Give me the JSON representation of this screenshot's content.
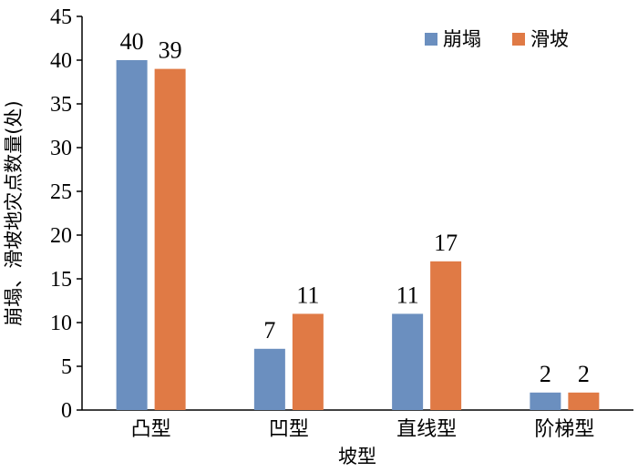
{
  "chart_data": {
    "type": "bar",
    "categories": [
      "凸型",
      "凹型",
      "直线型",
      "阶梯型"
    ],
    "series": [
      {
        "name": "崩塌",
        "values": [
          40,
          7,
          11,
          2
        ],
        "color": "#6b8fbf"
      },
      {
        "name": "滑坡",
        "values": [
          39,
          11,
          17,
          2
        ],
        "color": "#e07a45"
      }
    ],
    "xlabel": "坡型",
    "ylabel": "崩塌、滑坡地灾点数量(处)",
    "ylim": [
      0,
      45
    ],
    "yticks": [
      0,
      5,
      10,
      15,
      20,
      25,
      30,
      35,
      40,
      45
    ],
    "value_labels": [
      [
        "40",
        "7",
        "11",
        "2"
      ],
      [
        "39",
        "11",
        "17",
        "2"
      ]
    ],
    "grid": false,
    "legend_position": "top-right"
  }
}
